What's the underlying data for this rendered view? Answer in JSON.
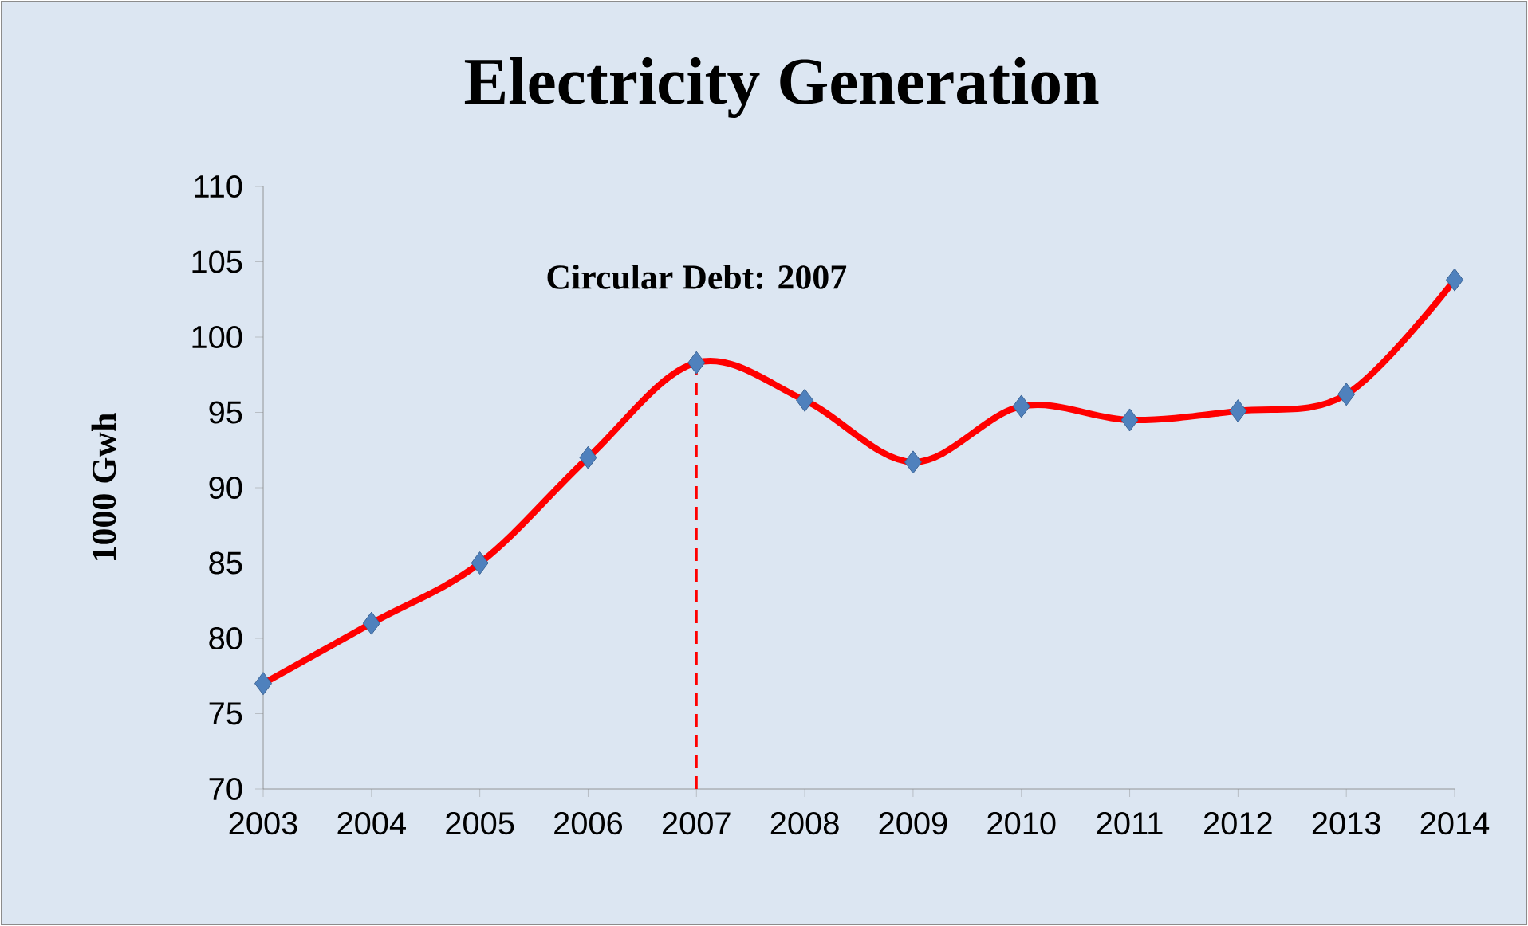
{
  "chart_data": {
    "type": "line",
    "title": "Electricity Generation",
    "ylabel": "1000 Gwh",
    "categories": [
      "2003",
      "2004",
      "2005",
      "2006",
      "2007",
      "2008",
      "2009",
      "2010",
      "2011",
      "2012",
      "2013",
      "2014"
    ],
    "series": [
      {
        "color": "#ff0000",
        "values": [
          77,
          81,
          85,
          92,
          98.3,
          95.8,
          91.7,
          95.4,
          94.5,
          95.1,
          96.2,
          103.8
        ]
      }
    ],
    "ylim": [
      70,
      110
    ],
    "yticks": [
      70,
      75,
      80,
      85,
      90,
      95,
      100,
      105,
      110
    ],
    "ref_lines": [
      {
        "axis": "x",
        "value": "2007",
        "label": "Circular Debt: 2007",
        "color": "#ff0000",
        "line_style": "dashed"
      }
    ],
    "marker": "diamond",
    "line_style": "solid",
    "grid": false
  }
}
